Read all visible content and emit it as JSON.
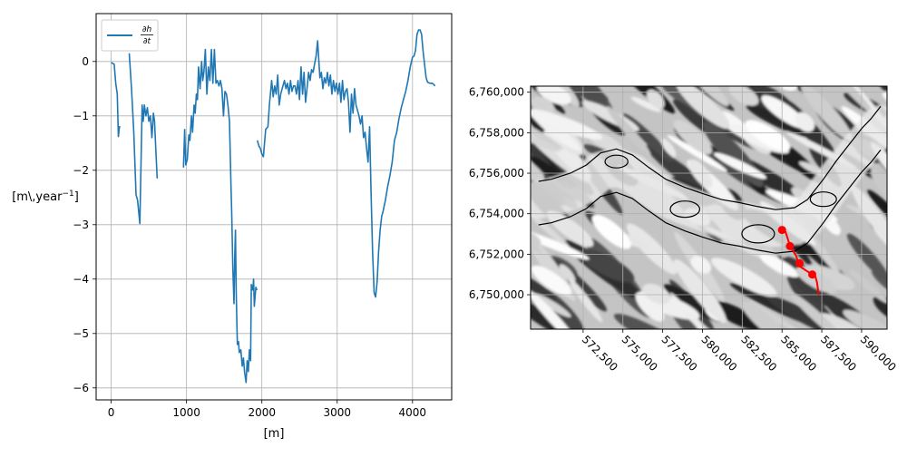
{
  "chart_data": [
    {
      "type": "line",
      "xlabel": "[m]",
      "ylabel": "[m\\,year",
      "ylabel_sup": "−1",
      "ylabel_close": "]",
      "xlim": [
        -200,
        4520
      ],
      "ylim": [
        -6.22,
        0.88
      ],
      "grid": true,
      "legend_position": "top-left",
      "xticks": [
        0,
        1000,
        2000,
        3000,
        4000
      ],
      "xtick_labels": [
        "0",
        "1000",
        "2000",
        "3000",
        "4000"
      ],
      "yticks": [
        0,
        -1,
        -2,
        -3,
        -4,
        -5,
        -6
      ],
      "ytick_labels": [
        "0",
        "−1",
        "−2",
        "−3",
        "−4",
        "−5",
        "−6"
      ],
      "series": [
        {
          "name": "∂h/∂t",
          "legend_numerator": "∂h",
          "legend_denominator": "∂t",
          "color": "#1f77b4",
          "segments": [
            [
              [
                0,
                -0.02
              ],
              [
                40,
                -0.05
              ],
              [
                60,
                -0.4
              ],
              [
                80,
                -0.6
              ],
              [
                95,
                -1.38
              ],
              [
                110,
                -1.2
              ],
              [
                120,
                -1.2
              ]
            ],
            [
              [
                240,
                0.15
              ],
              [
                270,
                -0.5
              ],
              [
                300,
                -1.3
              ],
              [
                330,
                -2.45
              ],
              [
                350,
                -2.55
              ],
              [
                380,
                -2.98
              ],
              [
                400,
                -1.6
              ],
              [
                410,
                -0.8
              ],
              [
                425,
                -1.1
              ],
              [
                440,
                -0.8
              ],
              [
                460,
                -1.0
              ],
              [
                480,
                -0.85
              ],
              [
                500,
                -1.1
              ],
              [
                520,
                -1.0
              ],
              [
                540,
                -1.4
              ],
              [
                560,
                -0.95
              ],
              [
                575,
                -1.1
              ],
              [
                590,
                -1.55
              ],
              [
                610,
                -2.15
              ]
            ],
            [
              [
                960,
                -1.95
              ],
              [
                975,
                -1.25
              ],
              [
                990,
                -1.9
              ],
              [
                1010,
                -1.8
              ],
              [
                1030,
                -1.35
              ],
              [
                1045,
                -1.45
              ],
              [
                1065,
                -1.0
              ],
              [
                1080,
                -1.3
              ],
              [
                1100,
                -0.8
              ],
              [
                1115,
                -0.95
              ],
              [
                1130,
                -0.6
              ],
              [
                1145,
                -0.7
              ],
              [
                1160,
                -0.1
              ],
              [
                1180,
                -0.5
              ],
              [
                1200,
                0.0
              ],
              [
                1215,
                -0.35
              ],
              [
                1230,
                -0.2
              ],
              [
                1250,
                0.22
              ],
              [
                1270,
                -0.6
              ],
              [
                1290,
                -0.1
              ],
              [
                1310,
                -0.35
              ],
              [
                1330,
                0.22
              ],
              [
                1350,
                -0.4
              ],
              [
                1370,
                0.22
              ],
              [
                1390,
                -0.4
              ],
              [
                1410,
                -0.35
              ],
              [
                1430,
                -0.45
              ],
              [
                1450,
                -0.35
              ],
              [
                1470,
                -0.5
              ],
              [
                1490,
                -1.0
              ],
              [
                1510,
                -0.55
              ],
              [
                1530,
                -0.6
              ],
              [
                1550,
                -0.8
              ],
              [
                1570,
                -1.1
              ],
              [
                1590,
                -2.3
              ],
              [
                1600,
                -2.8
              ],
              [
                1615,
                -3.8
              ],
              [
                1630,
                -4.45
              ],
              [
                1640,
                -3.6
              ],
              [
                1650,
                -3.1
              ],
              [
                1660,
                -4.3
              ],
              [
                1675,
                -5.2
              ],
              [
                1690,
                -5.15
              ],
              [
                1700,
                -5.35
              ],
              [
                1720,
                -5.3
              ],
              [
                1740,
                -5.6
              ],
              [
                1755,
                -5.45
              ],
              [
                1770,
                -5.7
              ],
              [
                1790,
                -5.9
              ],
              [
                1805,
                -5.5
              ],
              [
                1820,
                -5.7
              ],
              [
                1835,
                -5.3
              ],
              [
                1850,
                -5.5
              ],
              [
                1860,
                -4.1
              ],
              [
                1880,
                -4.2
              ],
              [
                1890,
                -4.0
              ],
              [
                1900,
                -4.5
              ],
              [
                1920,
                -4.15
              ],
              [
                1935,
                -4.2
              ]
            ],
            [
              [
                1940,
                -1.45
              ],
              [
                1960,
                -1.55
              ],
              [
                1980,
                -1.6
              ],
              [
                2000,
                -1.7
              ],
              [
                2020,
                -1.75
              ],
              [
                2050,
                -1.25
              ],
              [
                2080,
                -1.2
              ],
              [
                2100,
                -0.8
              ],
              [
                2130,
                -0.35
              ],
              [
                2150,
                -0.65
              ],
              [
                2170,
                -0.45
              ],
              [
                2190,
                -0.6
              ],
              [
                2210,
                -0.25
              ],
              [
                2230,
                -0.8
              ],
              [
                2250,
                -0.6
              ],
              [
                2270,
                -0.5
              ],
              [
                2300,
                -0.35
              ],
              [
                2320,
                -0.5
              ],
              [
                2340,
                -0.4
              ],
              [
                2360,
                -0.6
              ],
              [
                2380,
                -0.35
              ],
              [
                2400,
                -0.55
              ],
              [
                2420,
                -0.45
              ],
              [
                2440,
                -0.45
              ],
              [
                2460,
                -0.6
              ],
              [
                2480,
                -0.35
              ],
              [
                2500,
                -0.7
              ],
              [
                2520,
                -0.1
              ],
              [
                2540,
                -0.6
              ],
              [
                2560,
                -0.2
              ],
              [
                2580,
                -0.75
              ],
              [
                2600,
                -0.5
              ],
              [
                2620,
                -0.2
              ],
              [
                2640,
                -0.35
              ],
              [
                2660,
                -0.15
              ],
              [
                2680,
                -0.2
              ],
              [
                2700,
                -0.05
              ],
              [
                2720,
                0.1
              ],
              [
                2740,
                0.38
              ],
              [
                2755,
                0.05
              ],
              [
                2770,
                -0.3
              ],
              [
                2790,
                -0.2
              ],
              [
                2810,
                -0.5
              ],
              [
                2830,
                -0.3
              ],
              [
                2850,
                -0.4
              ],
              [
                2870,
                -0.2
              ],
              [
                2890,
                -0.45
              ],
              [
                2910,
                -0.25
              ],
              [
                2930,
                -0.6
              ],
              [
                2950,
                -0.35
              ],
              [
                2970,
                -0.55
              ],
              [
                2990,
                -0.4
              ],
              [
                3010,
                -0.6
              ],
              [
                3030,
                -0.4
              ],
              [
                3050,
                -0.75
              ],
              [
                3070,
                -0.35
              ],
              [
                3090,
                -0.7
              ],
              [
                3110,
                -0.55
              ],
              [
                3130,
                -0.5
              ],
              [
                3150,
                -0.75
              ],
              [
                3170,
                -1.3
              ],
              [
                3190,
                -0.6
              ],
              [
                3210,
                -0.95
              ],
              [
                3230,
                -0.5
              ],
              [
                3250,
                -0.8
              ],
              [
                3270,
                -0.9
              ],
              [
                3290,
                -1.0
              ],
              [
                3310,
                -1.15
              ],
              [
                3330,
                -1.0
              ],
              [
                3350,
                -1.4
              ],
              [
                3370,
                -1.3
              ],
              [
                3390,
                -1.6
              ],
              [
                3410,
                -1.85
              ],
              [
                3430,
                -1.2
              ],
              [
                3450,
                -2.4
              ],
              [
                3470,
                -3.5
              ],
              [
                3490,
                -4.25
              ],
              [
                3510,
                -4.33
              ],
              [
                3530,
                -4.05
              ],
              [
                3550,
                -3.5
              ],
              [
                3570,
                -3.1
              ],
              [
                3590,
                -2.85
              ],
              [
                3610,
                -2.75
              ],
              [
                3640,
                -2.55
              ],
              [
                3670,
                -2.3
              ],
              [
                3700,
                -2.1
              ],
              [
                3730,
                -1.85
              ],
              [
                3760,
                -1.45
              ],
              [
                3790,
                -1.3
              ],
              [
                3820,
                -1.05
              ],
              [
                3850,
                -0.85
              ],
              [
                3880,
                -0.7
              ],
              [
                3910,
                -0.55
              ],
              [
                3940,
                -0.35
              ],
              [
                3970,
                -0.1
              ],
              [
                4000,
                0.08
              ],
              [
                4020,
                0.1
              ],
              [
                4040,
                0.2
              ],
              [
                4060,
                0.5
              ],
              [
                4080,
                0.58
              ],
              [
                4100,
                0.58
              ],
              [
                4120,
                0.5
              ],
              [
                4140,
                0.2
              ],
              [
                4160,
                -0.05
              ],
              [
                4180,
                -0.3
              ],
              [
                4200,
                -0.38
              ],
              [
                4230,
                -0.4
              ],
              [
                4260,
                -0.4
              ],
              [
                4280,
                -0.42
              ],
              [
                4300,
                -0.45
              ]
            ]
          ]
        }
      ]
    },
    {
      "type": "map",
      "xlim": [
        569200,
        591600
      ],
      "ylim": [
        6748300,
        6760300
      ],
      "grid": true,
      "xticks": [
        572500,
        575000,
        577500,
        580000,
        582500,
        585000,
        587500,
        590000
      ],
      "xtick_labels": [
        "572,500",
        "575,000",
        "577,500",
        "580,000",
        "582,500",
        "585,000",
        "587,500",
        "590,000"
      ],
      "yticks": [
        6750000,
        6752000,
        6754000,
        6756000,
        6758000,
        6760000
      ],
      "ytick_labels": [
        "6,750,000",
        "6,752,000",
        "6,754,000",
        "6,756,000",
        "6,758,000",
        "6,760,000"
      ],
      "profile_line_color": "#ff0000",
      "profile_line": [
        [
          585000,
          6753300
        ],
        [
          585200,
          6753150
        ],
        [
          585350,
          6752800
        ],
        [
          585500,
          6752400
        ],
        [
          585700,
          6752150
        ],
        [
          585900,
          6751900
        ],
        [
          586000,
          6751600
        ],
        [
          586200,
          6751350
        ],
        [
          586500,
          6751200
        ],
        [
          586800,
          6751050
        ],
        [
          587100,
          6750900
        ],
        [
          587200,
          6750600
        ],
        [
          587250,
          6750300
        ],
        [
          587300,
          6750000
        ]
      ],
      "profile_markers": [
        [
          585000,
          6753200
        ],
        [
          585500,
          6752400
        ],
        [
          586100,
          6751550
        ],
        [
          586900,
          6751000
        ]
      ],
      "outline_color": "#000000",
      "outline": [
        [
          591200,
          6759300
        ],
        [
          590600,
          6758700
        ],
        [
          590000,
          6758200
        ],
        [
          589200,
          6757400
        ],
        [
          588400,
          6756600
        ],
        [
          587600,
          6755700
        ],
        [
          586600,
          6754700
        ],
        [
          585800,
          6754300
        ],
        [
          584600,
          6754200
        ],
        [
          583500,
          6754350
        ],
        [
          582300,
          6754550
        ],
        [
          581200,
          6754700
        ],
        [
          580000,
          6755000
        ],
        [
          578900,
          6755300
        ],
        [
          577700,
          6755700
        ],
        [
          576600,
          6756300
        ],
        [
          575600,
          6756900
        ],
        [
          574600,
          6757200
        ],
        [
          573600,
          6757000
        ],
        [
          572700,
          6756400
        ],
        [
          571700,
          6756000
        ],
        [
          570500,
          6755700
        ],
        [
          569700,
          6755600
        ]
      ]
    }
  ]
}
